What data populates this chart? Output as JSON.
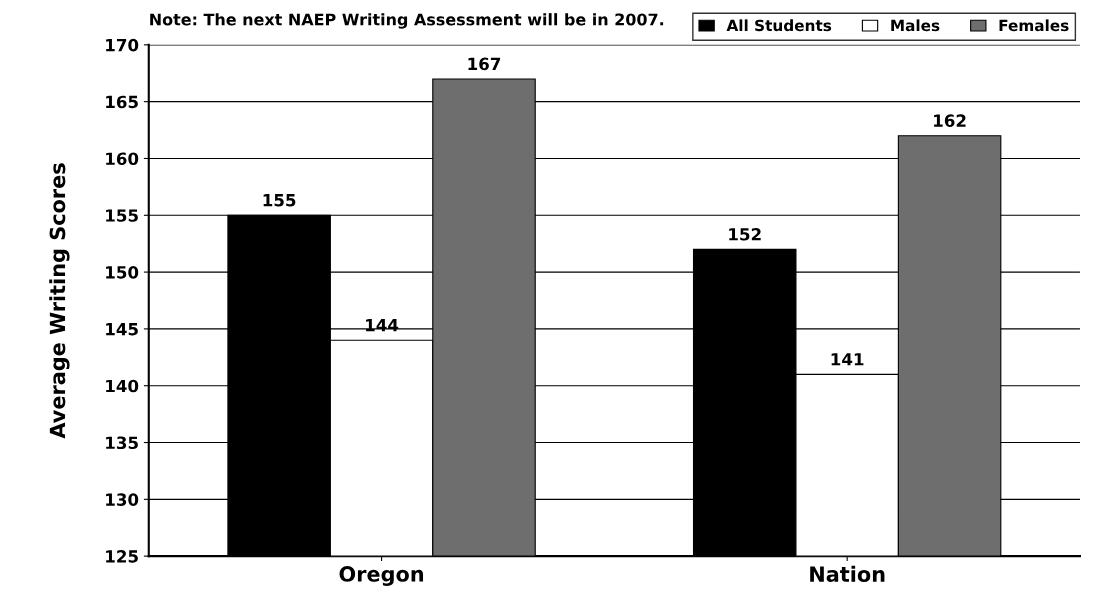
{
  "chart_data": {
    "type": "bar",
    "ylabel": "Average Writing Scores",
    "annotations": [
      "Note: The next NAEP Writing Assessment will be in 2007."
    ],
    "categories": [
      "Oregon",
      "Nation"
    ],
    "series": [
      {
        "name": "All Students",
        "color": "#000000",
        "values": [
          155,
          152
        ]
      },
      {
        "name": "Males",
        "color": "#ffffff",
        "values": [
          144,
          141
        ]
      },
      {
        "name": "Females",
        "color": "#6e6e6e",
        "values": [
          167,
          162
        ]
      }
    ],
    "ylim": [
      125,
      170
    ],
    "yticks": [
      125,
      130,
      135,
      140,
      145,
      150,
      155,
      160,
      165,
      170
    ],
    "grid": "y",
    "legend": "top right",
    "data_labels": true
  }
}
